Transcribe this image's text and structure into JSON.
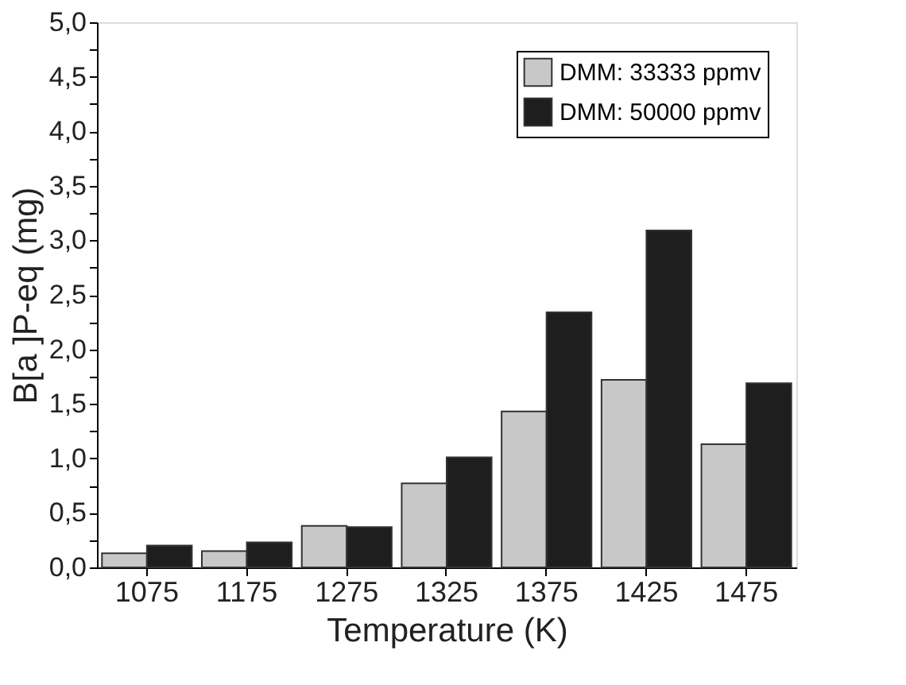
{
  "chart_data": {
    "type": "bar",
    "xlabel": "Temperature (K)",
    "ylabel": "B[a ]P-eq (mg)",
    "categories": [
      "1075",
      "1175",
      "1275",
      "1325",
      "1375",
      "1425",
      "1475"
    ],
    "series": [
      {
        "name": "DMM: 33333 ppmv",
        "color": "#c8c8c8",
        "values": [
          0.13,
          0.15,
          0.38,
          0.77,
          1.43,
          1.72,
          1.13
        ]
      },
      {
        "name": "DMM: 50000 ppmv",
        "color": "#1e1e1e",
        "values": [
          0.2,
          0.23,
          0.37,
          1.01,
          2.34,
          3.09,
          1.69
        ]
      }
    ],
    "ylim": [
      0,
      5
    ],
    "yticks": [
      {
        "value": 0,
        "label": "0,0"
      },
      {
        "value": 0.25,
        "label": null
      },
      {
        "value": 0.5,
        "label": "0,5"
      },
      {
        "value": 0.75,
        "label": null
      },
      {
        "value": 1,
        "label": "1,0"
      },
      {
        "value": 1.25,
        "label": null
      },
      {
        "value": 1.5,
        "label": "1,5"
      },
      {
        "value": 1.75,
        "label": null
      },
      {
        "value": 2,
        "label": "2,0"
      },
      {
        "value": 2.25,
        "label": null
      },
      {
        "value": 2.5,
        "label": "2,5"
      },
      {
        "value": 2.75,
        "label": null
      },
      {
        "value": 3,
        "label": "3,0"
      },
      {
        "value": 3.25,
        "label": null
      },
      {
        "value": 3.5,
        "label": "3,5"
      },
      {
        "value": 3.75,
        "label": null
      },
      {
        "value": 4,
        "label": "4,0"
      },
      {
        "value": 4.25,
        "label": null
      },
      {
        "value": 4.5,
        "label": "4,5"
      },
      {
        "value": 4.75,
        "label": null
      },
      {
        "value": 5,
        "label": "5,0"
      }
    ],
    "grid": false,
    "legend": "top right"
  }
}
